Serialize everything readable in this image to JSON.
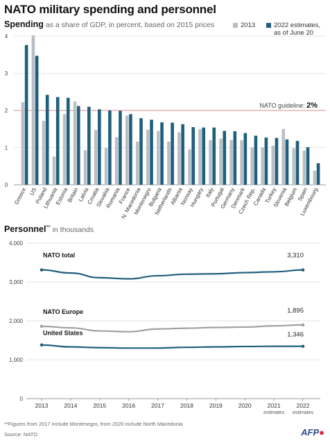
{
  "title": "NATO military spending and personnel",
  "spending_heading": "Spending",
  "spending_sub": "as a share of GDP, in percent, based on 2015 prices",
  "legend": {
    "a_label": "2013",
    "b_label_1": "2022 estimates,",
    "b_label_2": "as of June 20"
  },
  "guideline": {
    "label": "NATO guideline:",
    "value": "2%"
  },
  "personnel_heading": "Personnel",
  "personnel_mark": "**",
  "personnel_sub": "in thousands",
  "footnote": "**Figures from 2017 include Montenegro, from 2020 include North Macedonia",
  "source": "Source: NATO",
  "brand": {
    "text": "AFP",
    "accent": "#d22b2b"
  },
  "colors": {
    "y2013": "#b9bfc5",
    "y2022": "#1f5f7d",
    "grey_line": "#a0a0a0",
    "guide": "#e58a8a"
  },
  "chart_data": [
    {
      "type": "bar",
      "title": "Spending",
      "ylim": [
        0,
        4
      ],
      "yticks": [
        "0",
        "1",
        "2",
        "3",
        "4"
      ],
      "guideline": 2,
      "categories": [
        "Greece",
        "US",
        "Poland",
        "Lithuania",
        "Estonia",
        "Britain",
        "Latvia",
        "Croatia",
        "Slovakia",
        "Romania",
        "France",
        "N. Macedonia",
        "Montenegro",
        "Bulgaria",
        "Netherlands",
        "Albania",
        "Norway",
        "Hungary",
        "Italy",
        "Portugal",
        "Germany",
        "Denmark",
        "Czech Rep.",
        "Canada",
        "Turkey",
        "Slovenia",
        "Belgium",
        "Spain",
        "Luxembourg"
      ],
      "series": [
        {
          "name": "2013",
          "values": [
            2.22,
            4.02,
            1.72,
            0.76,
            1.9,
            2.24,
            0.93,
            1.47,
            0.99,
            1.28,
            1.86,
            1.16,
            1.48,
            1.45,
            1.16,
            1.41,
            0.95,
            1.5,
            1.2,
            1.24,
            1.2,
            1.2,
            1.0,
            1.0,
            1.05,
            1.5,
            0.98,
            0.92,
            0.38
          ]
        },
        {
          "name": "2022 estimates, as of June 20",
          "values": [
            3.76,
            3.47,
            2.42,
            2.36,
            2.34,
            2.12,
            2.1,
            2.03,
            2.0,
            1.99,
            1.9,
            1.79,
            1.75,
            1.68,
            1.67,
            1.63,
            1.55,
            1.54,
            1.54,
            1.45,
            1.44,
            1.39,
            1.32,
            1.27,
            1.26,
            1.22,
            1.18,
            1.01,
            0.58
          ]
        }
      ]
    },
    {
      "type": "line",
      "title": "Personnel",
      "ylim": [
        0,
        4000
      ],
      "yticks": [
        "0",
        "1,000",
        "2,000",
        "3,000",
        "4,000"
      ],
      "x": [
        "2013",
        "2014",
        "2015",
        "2016",
        "2017",
        "2018",
        "2019",
        "2020",
        "2021",
        "2022"
      ],
      "x_sub": [
        "",
        "",
        "",
        "",
        "",
        "",
        "",
        "",
        "estimates",
        "estimates"
      ],
      "series": [
        {
          "name": "NATO total",
          "values": [
            3310,
            3230,
            3110,
            3080,
            3160,
            3200,
            3210,
            3240,
            3260,
            3310
          ],
          "end_label": "3,310"
        },
        {
          "name": "NATO Europe",
          "values": [
            1860,
            1820,
            1740,
            1720,
            1790,
            1810,
            1830,
            1840,
            1870,
            1895
          ],
          "end_label": "1,895"
        },
        {
          "name": "United States",
          "values": [
            1380,
            1330,
            1310,
            1300,
            1300,
            1320,
            1330,
            1340,
            1346,
            1346
          ],
          "end_label": "1,346"
        }
      ]
    }
  ]
}
